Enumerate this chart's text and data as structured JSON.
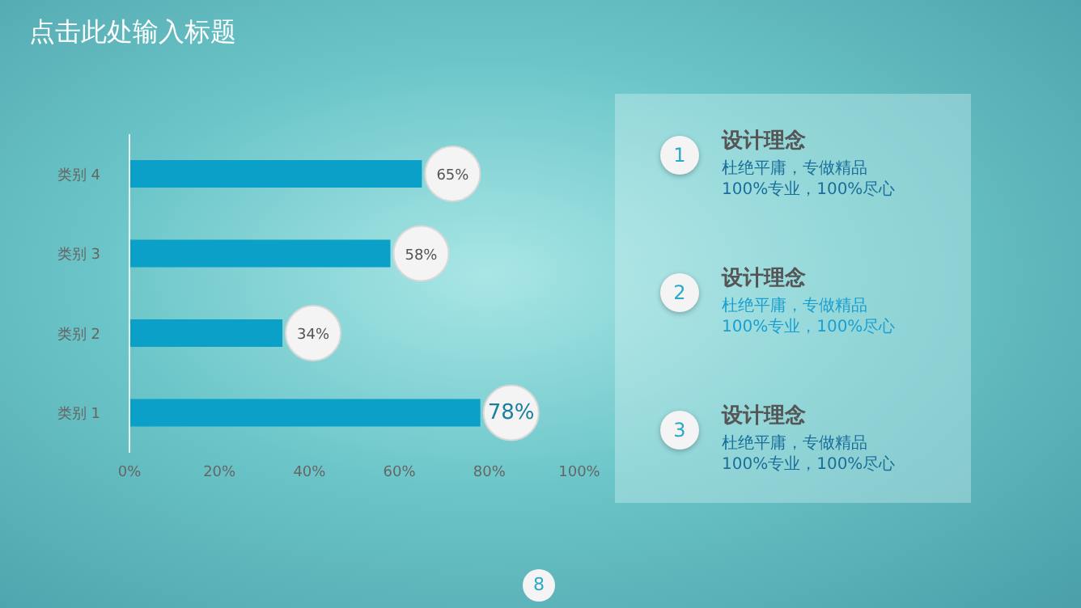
{
  "chart_data": {
    "type": "bar",
    "orientation": "horizontal",
    "title": "点击此处输入标题",
    "categories": [
      "类别 4",
      "类别 3",
      "类别 2",
      "类别 1"
    ],
    "values": [
      65,
      58,
      34,
      78
    ],
    "color": "#0aa0c8",
    "value_labels": [
      "65%",
      "58%",
      "34%",
      "78%"
    ],
    "xlim": [
      0,
      100
    ],
    "xticks": [
      {
        "value": 0,
        "label": "0%"
      },
      {
        "value": 20,
        "label": "20%"
      },
      {
        "value": 40,
        "label": "40%"
      },
      {
        "value": 60,
        "label": "60%"
      },
      {
        "value": 80,
        "label": "80%"
      },
      {
        "value": 100,
        "label": "100%"
      }
    ],
    "grid": false,
    "legend": false,
    "annotations": [
      "1",
      "设计理念",
      "杜绝平庸，专做精品",
      "100%专业，100%尽心",
      "2",
      "设计理念",
      "杜绝平庸，专做精品",
      "100%专业，100%尽心",
      "3",
      "设计理念",
      "杜绝平庸，专做精品",
      "100%专业，100%尽心",
      "8"
    ]
  }
}
